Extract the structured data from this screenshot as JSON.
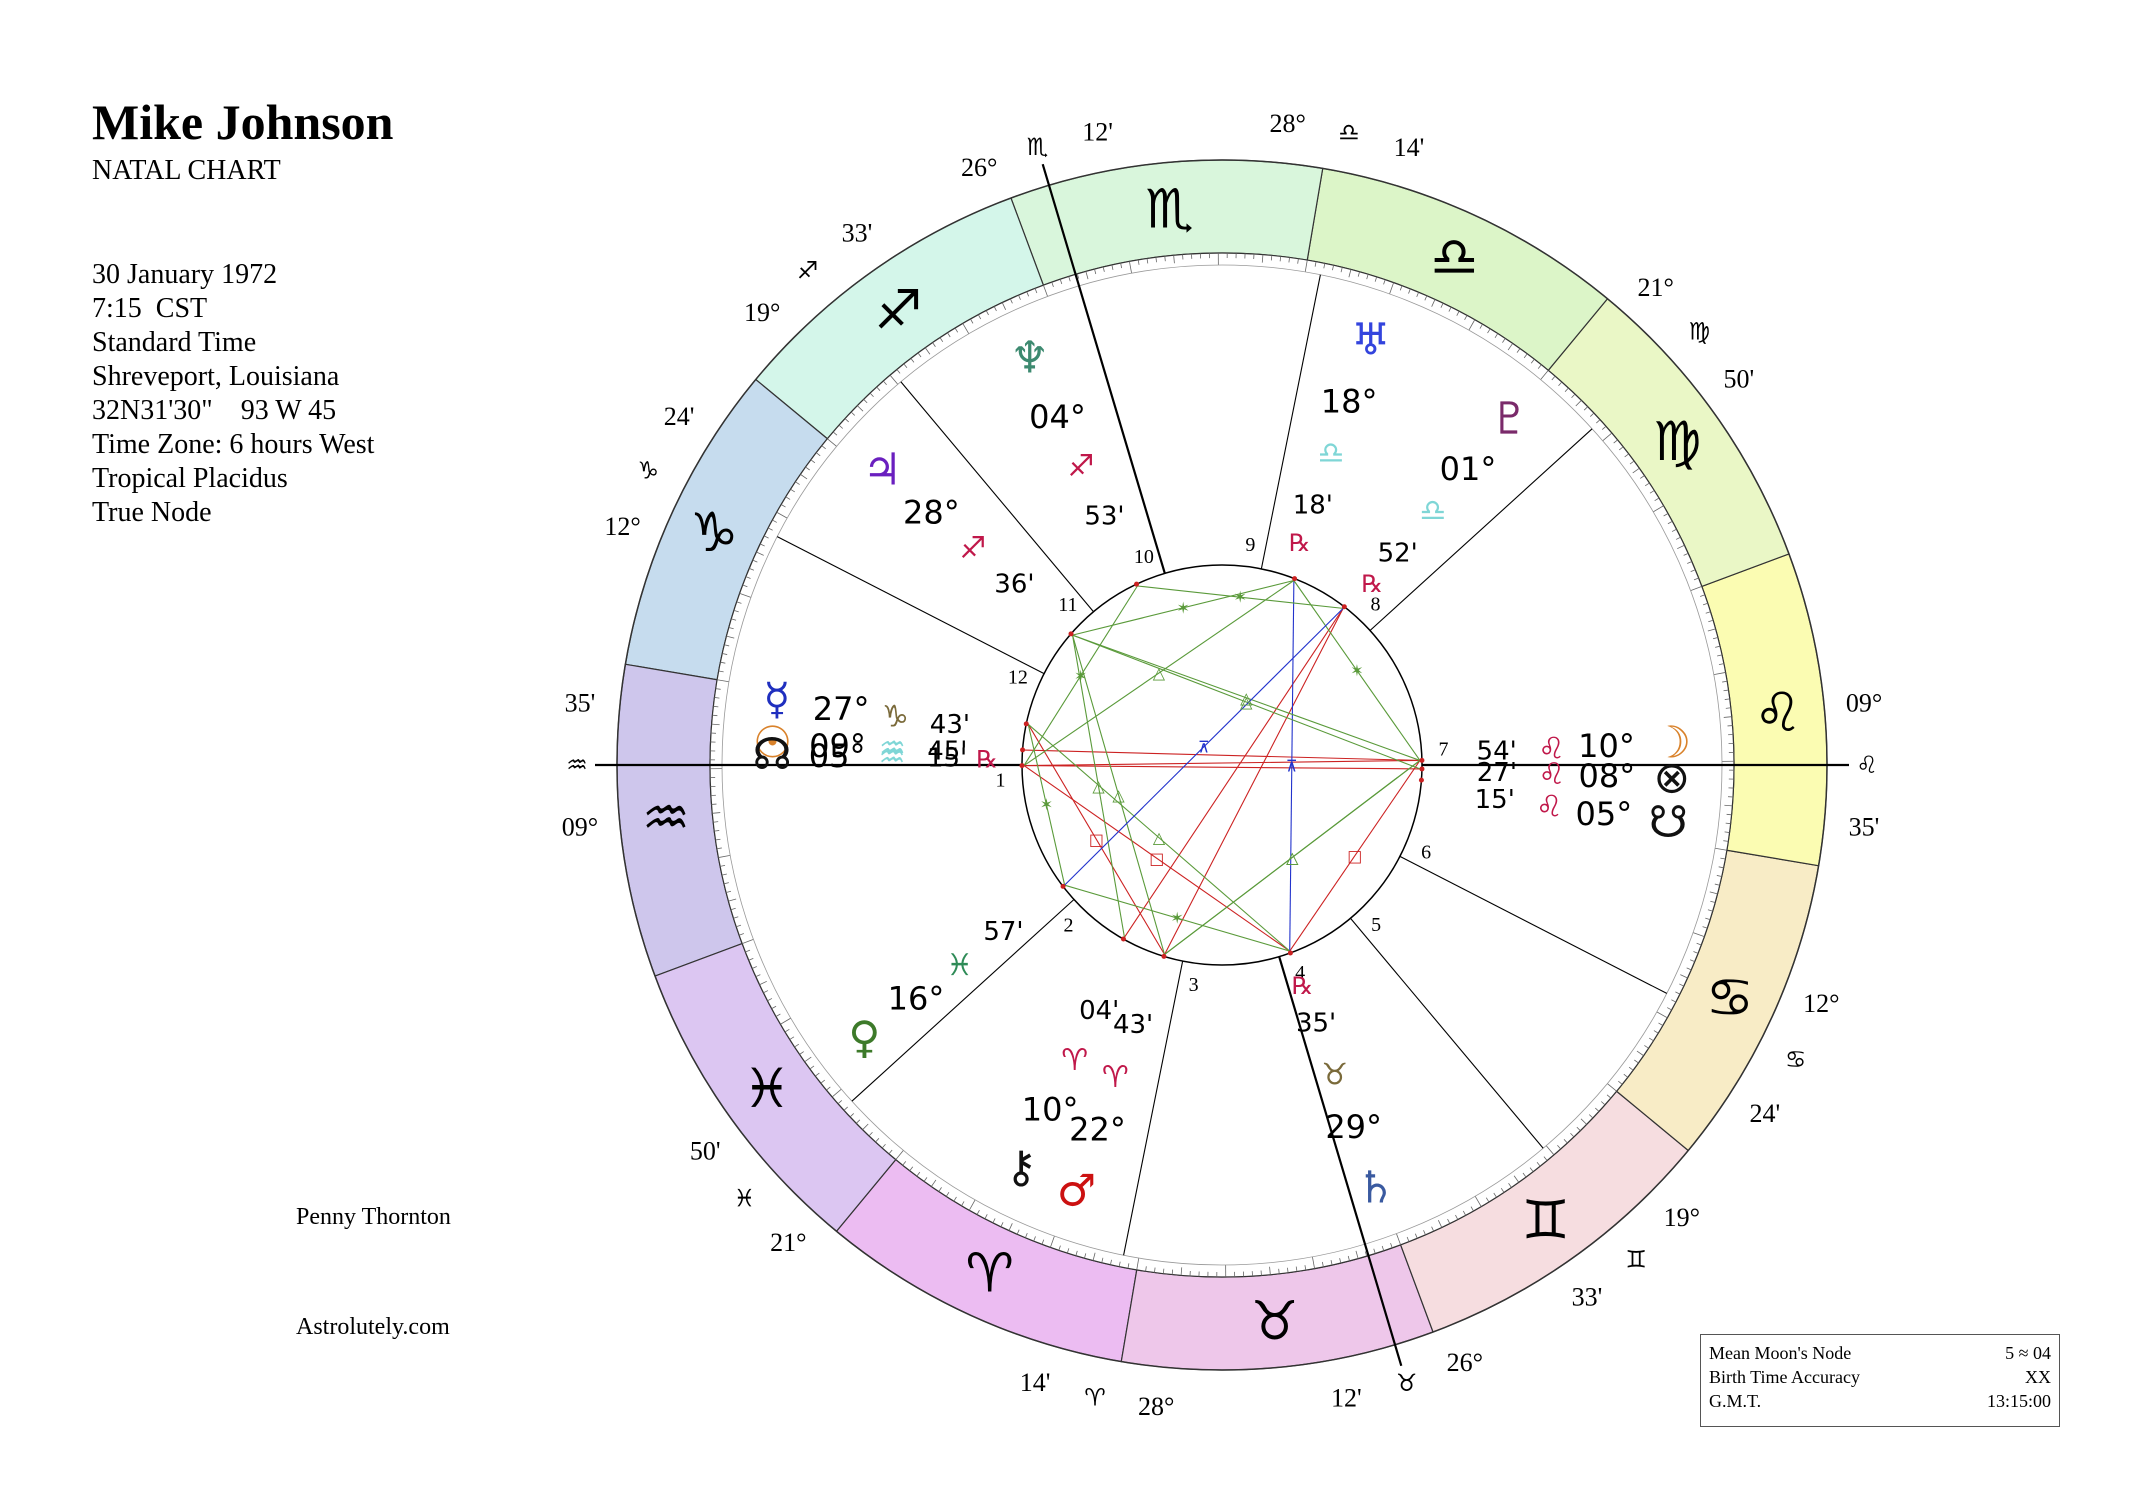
{
  "header": {
    "name": "Mike Johnson",
    "subtitle": "NATAL CHART"
  },
  "details": [
    "30 January 1972",
    "7:15  CST",
    "Standard Time",
    "Shreveport, Louisiana",
    "32N31'30\"    93 W 45",
    "Time Zone: 6 hours West",
    "Tropical Placidus",
    "True Node"
  ],
  "credits": {
    "author": "Penny Thornton",
    "site": "Astrolutely.com"
  },
  "info_box": [
    {
      "label": "Mean Moon's Node",
      "value": "5 ≈ 04"
    },
    {
      "label": "Birth Time Accuracy",
      "value": "XX"
    },
    {
      "label": "G.M.T.",
      "value": "13:15:00"
    }
  ],
  "colors": {
    "aspect_red": "#cc2222",
    "aspect_green": "#5a9a3a",
    "aspect_blue": "#2233cc",
    "fire": "#c0184a",
    "water": "#7fd6d6"
  },
  "zodiac": [
    {
      "sign": "Aries",
      "glyph": "♈",
      "color": "#ecbcf2"
    },
    {
      "sign": "Taurus",
      "glyph": "♉",
      "color": "#eec7ea"
    },
    {
      "sign": "Gemini",
      "glyph": "♊",
      "color": "#f6dde0"
    },
    {
      "sign": "Cancer",
      "glyph": "♋",
      "color": "#f8ecc6"
    },
    {
      "sign": "Leo",
      "glyph": "♌",
      "color": "#fbfcb2"
    },
    {
      "sign": "Virgo",
      "glyph": "♍",
      "color": "#eaf7c6"
    },
    {
      "sign": "Libra",
      "glyph": "♎",
      "color": "#dcf5c8"
    },
    {
      "sign": "Scorpio",
      "glyph": "♏",
      "color": "#d9f6dc"
    },
    {
      "sign": "Sagittarius",
      "glyph": "♐",
      "color": "#d4f6ea"
    },
    {
      "sign": "Capricorn",
      "glyph": "♑",
      "color": "#c6dcee"
    },
    {
      "sign": "Aquarius",
      "glyph": "♒",
      "color": "#cec6ec"
    },
    {
      "sign": "Pisces",
      "glyph": "♓",
      "color": "#dcc6f2"
    }
  ],
  "house_cusps": [
    {
      "house": 1,
      "deg": "09°",
      "sign": "♒",
      "min": "35'"
    },
    {
      "house": 2,
      "deg": "21°",
      "sign": "♓",
      "min": "50'"
    },
    {
      "house": 3,
      "deg": "28°",
      "sign": "♈",
      "min": "14'"
    },
    {
      "house": 4,
      "deg": "26°",
      "sign": "♉",
      "min": "12'"
    },
    {
      "house": 5,
      "deg": "19°",
      "sign": "♊",
      "min": "33'"
    },
    {
      "house": 6,
      "deg": "12°",
      "sign": "♋",
      "min": "24'"
    },
    {
      "house": 7,
      "deg": "09°",
      "sign": "♌",
      "min": "35'"
    },
    {
      "house": 8,
      "deg": "21°",
      "sign": "♍",
      "min": "50'"
    },
    {
      "house": 9,
      "deg": "28°",
      "sign": "♎",
      "min": "14'"
    },
    {
      "house": 10,
      "deg": "26°",
      "sign": "♏",
      "min": "12'"
    },
    {
      "house": 11,
      "deg": "19°",
      "sign": "♐",
      "min": "33'"
    },
    {
      "house": 12,
      "deg": "12°",
      "sign": "♑",
      "min": "24'"
    }
  ],
  "planets": [
    {
      "name": "Sun",
      "glyph": "☉",
      "deg": "09°",
      "sign": "♒",
      "min": "45'",
      "retro": "",
      "color": "#d9822b"
    },
    {
      "name": "Moon",
      "glyph": "☽",
      "deg": "10°",
      "sign": "♌",
      "min": "54'",
      "retro": "",
      "color": "#d9822b"
    },
    {
      "name": "Mercury",
      "glyph": "☿",
      "deg": "27°",
      "sign": "♑",
      "min": "43'",
      "retro": "",
      "color": "#1f2fbf"
    },
    {
      "name": "Venus",
      "glyph": "♀",
      "deg": "16°",
      "sign": "♓",
      "min": "57'",
      "retro": "",
      "color": "#3d7a2a"
    },
    {
      "name": "Mars",
      "glyph": "♂",
      "deg": "22°",
      "sign": "♈",
      "min": "43'",
      "retro": "",
      "color": "#cc1111"
    },
    {
      "name": "Jupiter",
      "glyph": "♃",
      "deg": "28°",
      "sign": "♐",
      "min": "36'",
      "retro": "",
      "color": "#6a1fbf"
    },
    {
      "name": "Saturn",
      "glyph": "♄",
      "deg": "29°",
      "sign": "♉",
      "min": "35'",
      "retro": "℞",
      "color": "#3a5aa0"
    },
    {
      "name": "Uranus",
      "glyph": "♅",
      "deg": "18°",
      "sign": "♎",
      "min": "18'",
      "retro": "℞",
      "color": "#3344dd"
    },
    {
      "name": "Neptune",
      "glyph": "♆",
      "deg": "04°",
      "sign": "♐",
      "min": "53'",
      "retro": "",
      "color": "#3d8a70"
    },
    {
      "name": "Pluto",
      "glyph": "♇",
      "deg": "01°",
      "sign": "♎",
      "min": "52'",
      "retro": "℞",
      "color": "#7a2a6a"
    },
    {
      "name": "Chiron",
      "glyph": "⚷",
      "deg": "10°",
      "sign": "♈",
      "min": "04'",
      "retro": "",
      "color": "#111111"
    },
    {
      "name": "North Node",
      "glyph": "☊",
      "deg": "05°",
      "sign": "♒",
      "min": "15'",
      "retro": "℞",
      "color": "#111111"
    },
    {
      "name": "South Node",
      "glyph": "☋",
      "deg": "05°",
      "sign": "♌",
      "min": "15'",
      "retro": "",
      "color": "#111111"
    },
    {
      "name": "Part of Fortune",
      "glyph": "⊗",
      "deg": "08°",
      "sign": "♌",
      "min": "27'",
      "retro": "",
      "color": "#111111"
    }
  ],
  "aspects": [
    {
      "from": "Sun",
      "to": "Moon",
      "type": "opposition"
    },
    {
      "from": "Sun",
      "to": "Part of Fortune",
      "type": "opposition"
    },
    {
      "from": "Moon",
      "to": "North Node",
      "type": "opposition"
    },
    {
      "from": "Sun",
      "to": "Saturn",
      "type": "square"
    },
    {
      "from": "Moon",
      "to": "Saturn",
      "type": "square"
    },
    {
      "from": "Mars",
      "to": "Mercury",
      "type": "square"
    },
    {
      "from": "Mars",
      "to": "Pluto",
      "type": "opposition"
    },
    {
      "from": "Chiron",
      "to": "Pluto",
      "type": "opposition"
    },
    {
      "from": "Uranus",
      "to": "Saturn",
      "type": "quincunx"
    },
    {
      "from": "Jupiter",
      "to": "Uranus",
      "type": "sextile"
    },
    {
      "from": "Neptune",
      "to": "Pluto",
      "type": "sextile"
    },
    {
      "from": "Mars",
      "to": "Jupiter",
      "type": "trine"
    },
    {
      "from": "Mars",
      "to": "Moon",
      "type": "trine"
    },
    {
      "from": "Jupiter",
      "to": "Moon",
      "type": "trine"
    },
    {
      "from": "Chiron",
      "to": "Jupiter",
      "type": "trine"
    },
    {
      "from": "Sun",
      "to": "Uranus",
      "type": "trine"
    },
    {
      "from": "Venus",
      "to": "Saturn",
      "type": "sextile"
    },
    {
      "from": "Neptune",
      "to": "Sun",
      "type": "sextile"
    },
    {
      "from": "Mercury",
      "to": "Venus",
      "type": "sextile"
    },
    {
      "from": "Mercury",
      "to": "Saturn",
      "type": "trine"
    },
    {
      "from": "Moon",
      "to": "Uranus",
      "type": "sextile"
    },
    {
      "from": "Moon",
      "to": "Mars",
      "type": "trine"
    },
    {
      "from": "Jupiter",
      "to": "Part of Fortune",
      "type": "trine"
    },
    {
      "from": "Pluto",
      "to": "Venus",
      "type": "quincunx"
    }
  ]
}
